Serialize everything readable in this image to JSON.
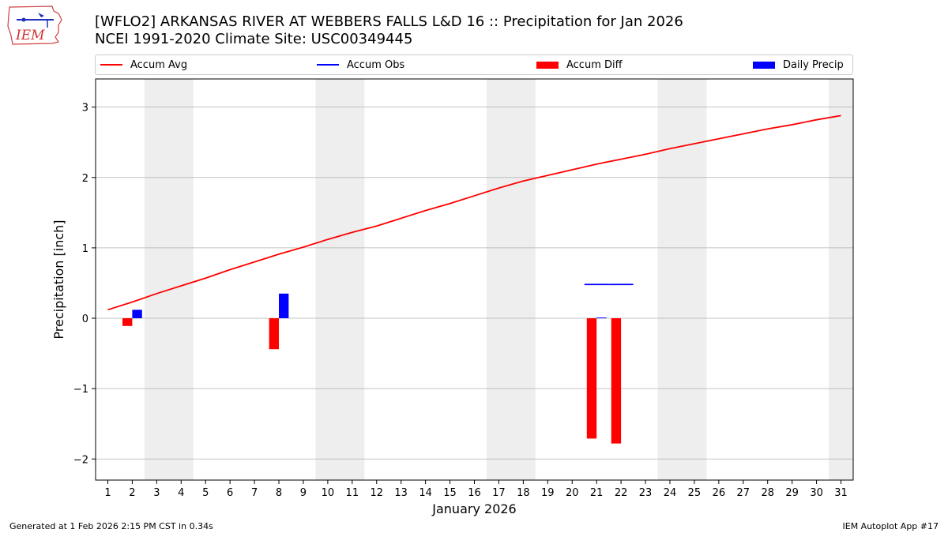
{
  "logo": {
    "text": "IEM"
  },
  "title": {
    "line1": "[WFLO2] ARKANSAS RIVER  AT WEBBERS FALLS L&D 16 :: Precipitation for Jan 2026",
    "line2": "NCEI 1991-2020 Climate Site: USC00349445"
  },
  "footer": {
    "left": "Generated at 1 Feb 2026 2:15 PM CST in 0.34s",
    "right": "IEM Autoplot App #17"
  },
  "colors": {
    "avg": "#ff0000",
    "obs": "#0000ff",
    "diff": "#ff0000",
    "daily": "#0000ff",
    "weekend_band": "#eeeeee",
    "grid": "#b0b0b0"
  },
  "chart_data": {
    "type": "bar",
    "title": "[WFLO2] ARKANSAS RIVER  AT WEBBERS FALLS L&D 16 :: Precipitation for Jan 2026",
    "xlabel": "January 2026",
    "ylabel": "Precipitation [inch]",
    "xlim": [
      0.5,
      31.5
    ],
    "ylim": [
      -2.3,
      3.4
    ],
    "yticks": [
      -2,
      -1,
      0,
      1,
      2,
      3
    ],
    "ytick_labels": [
      "−2",
      "−1",
      "0",
      "1",
      "2",
      "3"
    ],
    "days": [
      1,
      2,
      3,
      4,
      5,
      6,
      7,
      8,
      9,
      10,
      11,
      12,
      13,
      14,
      15,
      16,
      17,
      18,
      19,
      20,
      21,
      22,
      23,
      24,
      25,
      26,
      27,
      28,
      29,
      30,
      31
    ],
    "grid": true,
    "legend": {
      "placement": "top",
      "entries": [
        "Accum Avg",
        "Accum Obs",
        "Accum Diff",
        "Daily Precip"
      ]
    },
    "weekend_bands": [
      [
        2.5,
        4.5
      ],
      [
        9.5,
        11.5
      ],
      [
        16.5,
        18.5
      ],
      [
        23.5,
        25.5
      ],
      [
        30.5,
        31.5
      ]
    ],
    "series": [
      {
        "name": "Accum Avg",
        "kind": "line",
        "values": [
          0.12,
          0.23,
          0.35,
          0.46,
          0.57,
          0.69,
          0.8,
          0.91,
          1.01,
          1.12,
          1.22,
          1.31,
          1.42,
          1.53,
          1.63,
          1.74,
          1.85,
          1.95,
          2.03,
          2.11,
          2.19,
          2.26,
          2.33,
          2.41,
          2.48,
          2.55,
          2.62,
          2.69,
          2.75,
          2.82,
          2.88
        ]
      },
      {
        "name": "Accum Obs",
        "kind": "step",
        "segments": [
          {
            "day": 21,
            "value": 0.48
          },
          {
            "day": 22,
            "value": 0.48
          }
        ]
      },
      {
        "name": "Accum Diff",
        "kind": "bar",
        "points": [
          {
            "day": 2,
            "value": -0.11
          },
          {
            "day": 8,
            "value": -0.44
          },
          {
            "day": 21,
            "value": -1.71
          },
          {
            "day": 22,
            "value": -1.78
          }
        ]
      },
      {
        "name": "Daily Precip",
        "kind": "bar",
        "points": [
          {
            "day": 2,
            "value": 0.12
          },
          {
            "day": 8,
            "value": 0.35
          },
          {
            "day": 21,
            "value": 0.01
          }
        ]
      }
    ]
  }
}
